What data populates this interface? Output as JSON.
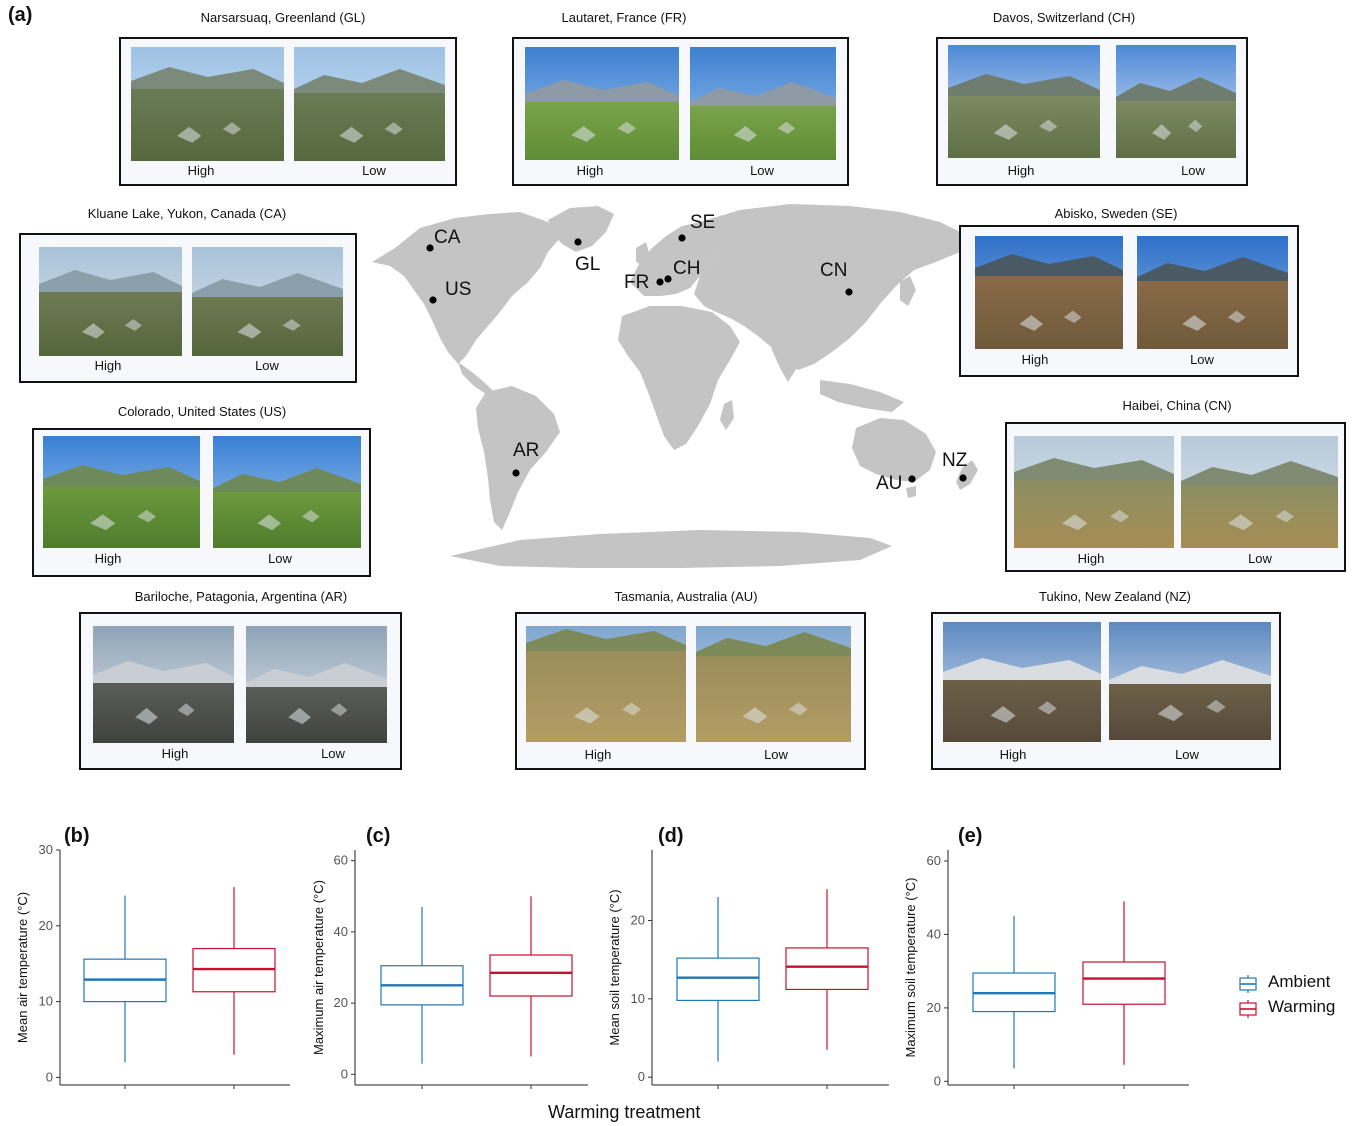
{
  "panel_a": {
    "letter": "(a)",
    "sites": [
      {
        "id": "GL",
        "title": "Narsarsuaq, Greenland (GL)",
        "high": "High",
        "low": "Low"
      },
      {
        "id": "FR",
        "title": "Lautaret, France (FR)",
        "high": "High",
        "low": "Low"
      },
      {
        "id": "CH",
        "title": "Davos, Switzerland (CH)",
        "high": "High",
        "low": "Low"
      },
      {
        "id": "CA",
        "title": "Kluane Lake, Yukon, Canada (CA)",
        "high": "High",
        "low": "Low"
      },
      {
        "id": "SE",
        "title": "Abisko, Sweden (SE)",
        "high": "High",
        "low": "Low"
      },
      {
        "id": "US",
        "title": "Colorado, United States (US)",
        "high": "High",
        "low": "Low"
      },
      {
        "id": "CN",
        "title": "Haibei, China (CN)",
        "high": "High",
        "low": "Low"
      },
      {
        "id": "AR",
        "title": "Bariloche, Patagonia, Argentina (AR)",
        "high": "High",
        "low": "Low"
      },
      {
        "id": "AU",
        "title": "Tasmania, Australia (AU)",
        "high": "High",
        "low": "Low"
      },
      {
        "id": "NZ",
        "title": "Tukino, New Zealand (NZ)",
        "high": "High",
        "low": "Low"
      }
    ],
    "map_labels": [
      "CA",
      "GL",
      "SE",
      "US",
      "FR",
      "CH",
      "CN",
      "AR",
      "AU",
      "NZ"
    ]
  },
  "chart_data": [
    {
      "letter": "(b)",
      "type": "box",
      "ylabel": "Mean air temperature (°C)",
      "ylim": [
        -1,
        30
      ],
      "yticks": [
        0,
        10,
        20,
        30
      ],
      "series": [
        {
          "name": "Ambient",
          "color": "#1f78b4",
          "min": 2,
          "q1": 10,
          "median": 12.9,
          "q3": 15.6,
          "max": 24
        },
        {
          "name": "Warming",
          "color": "#c8102e",
          "min": 3,
          "q1": 11.3,
          "median": 14.3,
          "q3": 17,
          "max": 25.1
        }
      ]
    },
    {
      "letter": "(c)",
      "type": "box",
      "ylabel": "Maximum air temperature (°C)",
      "ylim": [
        -3,
        63
      ],
      "yticks": [
        0,
        20,
        40,
        60
      ],
      "series": [
        {
          "name": "Ambient",
          "color": "#1f78b4",
          "min": 3,
          "q1": 19.5,
          "median": 25,
          "q3": 30.5,
          "max": 47
        },
        {
          "name": "Warming",
          "color": "#c8102e",
          "min": 5,
          "q1": 22,
          "median": 28.5,
          "q3": 33.5,
          "max": 50
        }
      ]
    },
    {
      "letter": "(d)",
      "type": "box",
      "ylabel": "Mean soil temperature (°C)",
      "ylim": [
        -1,
        29
      ],
      "yticks": [
        0,
        10,
        20
      ],
      "series": [
        {
          "name": "Ambient",
          "color": "#1f78b4",
          "min": 2,
          "q1": 9.8,
          "median": 12.7,
          "q3": 15.2,
          "max": 23
        },
        {
          "name": "Warming",
          "color": "#c8102e",
          "min": 3.5,
          "q1": 11.2,
          "median": 14.1,
          "q3": 16.5,
          "max": 24
        }
      ]
    },
    {
      "letter": "(e)",
      "type": "box",
      "ylabel": "Maximum soil temperature (°C)",
      "ylim": [
        -1,
        63
      ],
      "yticks": [
        0,
        20,
        40,
        60
      ],
      "series": [
        {
          "name": "Ambient",
          "color": "#1f78b4",
          "min": 3.5,
          "q1": 19,
          "median": 24,
          "q3": 29.5,
          "max": 45
        },
        {
          "name": "Warming",
          "color": "#c8102e",
          "min": 4.5,
          "q1": 21,
          "median": 28,
          "q3": 32.5,
          "max": 49
        }
      ]
    }
  ],
  "xlabel": "Warming treatment",
  "legend": [
    {
      "name": "Ambient",
      "color": "#1f78b4"
    },
    {
      "name": "Warming",
      "color": "#c8102e"
    }
  ]
}
